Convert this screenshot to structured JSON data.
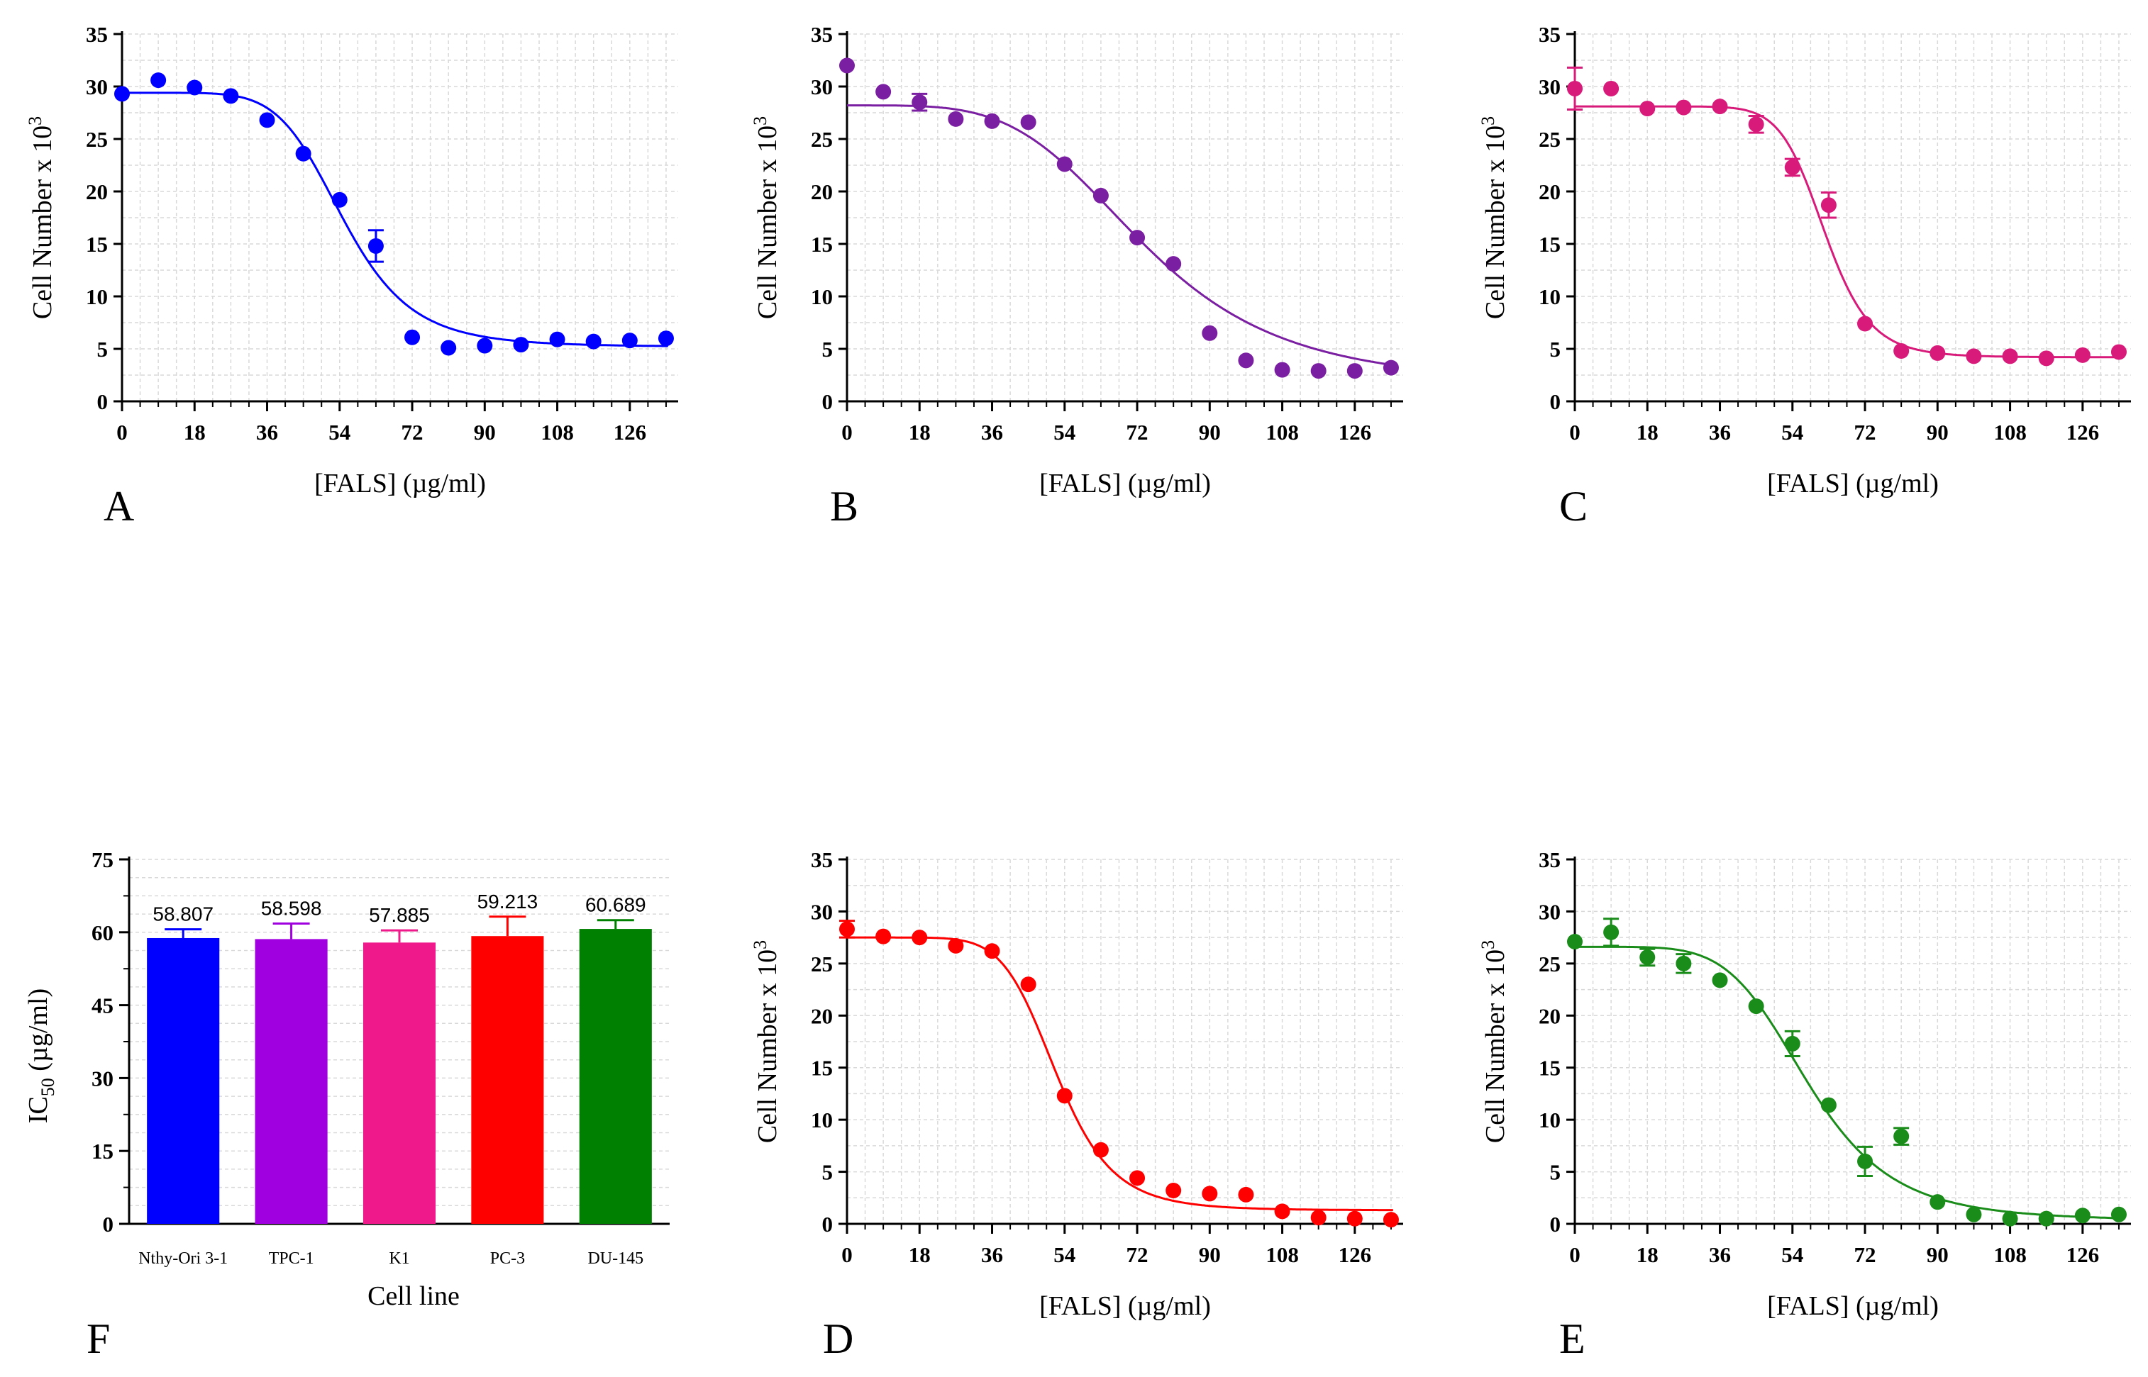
{
  "chart_data": [
    {
      "id": "A",
      "panel_label": "A",
      "type": "scatter",
      "color": "#0000ff",
      "title": "",
      "xlabel": "[FALS] (µg/ml)",
      "ylabel": "Cell Number x 10",
      "ylabel_sup": "3",
      "xlim": [
        0,
        138
      ],
      "ylim": [
        0,
        35
      ],
      "xticks": [
        0,
        18,
        36,
        54,
        72,
        90,
        108,
        126
      ],
      "yticks": [
        0,
        5,
        10,
        15,
        20,
        25,
        30,
        35
      ],
      "x": [
        0,
        9,
        18,
        27,
        36,
        45,
        54,
        63,
        72,
        81,
        90,
        99,
        108,
        117,
        126,
        135
      ],
      "y": [
        29.3,
        30.6,
        29.9,
        29.1,
        26.8,
        23.6,
        19.2,
        14.8,
        6.1,
        5.1,
        5.3,
        5.4,
        5.9,
        5.7,
        5.8,
        6.0
      ],
      "err": [
        0,
        0,
        0,
        0,
        0,
        0,
        0,
        1.5,
        0,
        0,
        0,
        0,
        0,
        0,
        0,
        0
      ],
      "fit": {
        "top": 29.4,
        "bottom": 5.2,
        "ec50": 55,
        "hill": 6.5
      }
    },
    {
      "id": "B",
      "panel_label": "B",
      "type": "scatter",
      "color": "#7b1fa2",
      "title": "",
      "xlabel": "[FALS] (µg/ml)",
      "ylabel": "Cell Number x 10",
      "ylabel_sup": "3",
      "xlim": [
        0,
        138
      ],
      "ylim": [
        0,
        35
      ],
      "xticks": [
        0,
        18,
        36,
        54,
        72,
        90,
        108,
        126
      ],
      "yticks": [
        0,
        5,
        10,
        15,
        20,
        25,
        30,
        35
      ],
      "x": [
        0,
        9,
        18,
        27,
        36,
        45,
        54,
        63,
        72,
        81,
        90,
        99,
        108,
        117,
        126,
        135
      ],
      "y": [
        32.0,
        29.5,
        28.5,
        26.9,
        26.7,
        26.6,
        22.6,
        19.6,
        15.6,
        13.1,
        6.5,
        3.9,
        3.0,
        2.9,
        2.9,
        3.2
      ],
      "err": [
        0,
        0,
        0.8,
        0,
        0,
        0,
        0,
        0,
        0,
        0,
        0,
        0,
        0,
        0,
        0,
        0
      ],
      "fit": {
        "top": 28.2,
        "bottom": 1.5,
        "ec50": 74,
        "hill": 4.2
      }
    },
    {
      "id": "C",
      "panel_label": "C",
      "type": "scatter",
      "color": "#d81b7a",
      "title": "",
      "xlabel": "[FALS] (µg/ml)",
      "ylabel": "Cell Number x 10",
      "ylabel_sup": "3",
      "xlim": [
        0,
        138
      ],
      "ylim": [
        0,
        35
      ],
      "xticks": [
        0,
        18,
        36,
        54,
        72,
        90,
        108,
        126
      ],
      "yticks": [
        0,
        5,
        10,
        15,
        20,
        25,
        30,
        35
      ],
      "x": [
        0,
        9,
        18,
        27,
        36,
        45,
        54,
        63,
        72,
        81,
        90,
        99,
        108,
        117,
        126,
        135
      ],
      "y": [
        29.8,
        29.8,
        27.9,
        28.0,
        28.1,
        26.4,
        22.3,
        18.7,
        7.4,
        4.8,
        4.6,
        4.3,
        4.3,
        4.1,
        4.4,
        4.7
      ],
      "err": [
        2.0,
        0,
        0,
        0,
        0,
        0.8,
        0.8,
        1.2,
        0,
        0,
        0,
        0,
        0,
        0,
        0,
        0
      ],
      "fit": {
        "top": 28.1,
        "bottom": 4.2,
        "ec50": 62,
        "hill": 11
      }
    },
    {
      "id": "D",
      "panel_label": "D",
      "type": "scatter",
      "color": "#ff0000",
      "title": "",
      "xlabel": "[FALS] (µg/ml)",
      "ylabel": "Cell Number x 10",
      "ylabel_sup": "3",
      "xlim": [
        0,
        138
      ],
      "ylim": [
        0,
        35
      ],
      "xticks": [
        0,
        18,
        36,
        54,
        72,
        90,
        108,
        126
      ],
      "yticks": [
        0,
        5,
        10,
        15,
        20,
        25,
        30,
        35
      ],
      "x": [
        0,
        9,
        18,
        27,
        36,
        45,
        54,
        63,
        72,
        81,
        90,
        99,
        108,
        117,
        126,
        135
      ],
      "y": [
        28.3,
        27.6,
        27.5,
        26.7,
        26.2,
        23.0,
        12.3,
        7.1,
        4.4,
        3.2,
        2.9,
        2.8,
        1.2,
        0.6,
        0.5,
        0.4
      ],
      "err": [
        0.8,
        0,
        0,
        0,
        0,
        0,
        0,
        0,
        0,
        0,
        0,
        0,
        0,
        0,
        0,
        0
      ],
      "fit": {
        "top": 27.5,
        "bottom": 1.3,
        "ec50": 52,
        "hill": 7.5
      }
    },
    {
      "id": "E",
      "panel_label": "E",
      "type": "scatter",
      "color": "#1a8c1a",
      "title": "",
      "xlabel": "[FALS] (µg/ml)",
      "ylabel": "Cell Number x 10",
      "ylabel_sup": "3",
      "xlim": [
        0,
        138
      ],
      "ylim": [
        0,
        35
      ],
      "xticks": [
        0,
        18,
        36,
        54,
        72,
        90,
        108,
        126
      ],
      "yticks": [
        0,
        5,
        10,
        15,
        20,
        25,
        30,
        35
      ],
      "x": [
        0,
        9,
        18,
        27,
        36,
        45,
        54,
        63,
        72,
        81,
        90,
        99,
        108,
        117,
        126,
        135
      ],
      "y": [
        27.1,
        28.0,
        25.6,
        25.0,
        23.4,
        20.9,
        17.3,
        11.4,
        6.0,
        8.4,
        2.1,
        0.9,
        0.5,
        0.5,
        0.8,
        0.9
      ],
      "err": [
        0,
        1.3,
        0.8,
        0.9,
        0,
        0,
        1.2,
        0,
        1.4,
        0.8,
        0,
        0,
        0,
        0,
        0,
        0
      ],
      "fit": {
        "top": 26.6,
        "bottom": 0.3,
        "ec50": 58,
        "hill": 5.5
      }
    },
    {
      "id": "F",
      "panel_label": "F",
      "type": "bar",
      "title": "",
      "xlabel": "Cell line",
      "ylabel": "IC",
      "ylabel_sub": "50",
      "ylabel_unit": " (µg/ml)",
      "ylim": [
        0,
        75
      ],
      "yticks": [
        0,
        15,
        30,
        45,
        60,
        75
      ],
      "categories": [
        "Nthy-Ori 3-1",
        "TPC-1",
        "K1",
        "PC-3",
        "DU-145"
      ],
      "values": [
        58.807,
        58.598,
        57.885,
        59.213,
        60.689
      ],
      "value_labels": [
        "58.807",
        "58.598",
        "57.885",
        "59.213",
        "60.689"
      ],
      "errors": [
        1.8,
        3.2,
        2.5,
        4.0,
        1.8
      ],
      "colors": [
        "#0000ff",
        "#a000e0",
        "#f0198c",
        "#ff0000",
        "#008000"
      ]
    }
  ]
}
